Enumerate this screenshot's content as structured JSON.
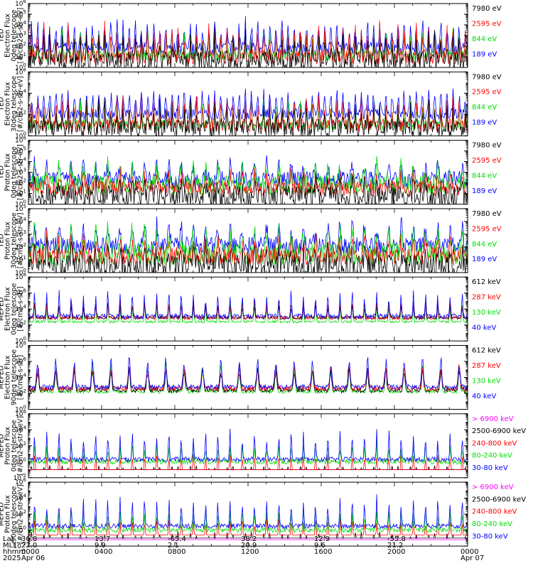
{
  "colors": {
    "black": "#000000",
    "red": "#ff0000",
    "green": "#00e000",
    "blue": "#0000ff",
    "magenta": "#ff00ff"
  },
  "chart_data": [
    {
      "type": "line",
      "ylabel": [
        "TED",
        "Electron Flux",
        "0deg telescope",
        "[#/cm2-s-str-eV]"
      ],
      "yscale": "log",
      "ylim_exp": [
        0,
        6
      ],
      "ytick_exp": [
        0,
        1,
        2,
        3,
        4,
        5,
        6
      ],
      "legend": [
        {
          "label": "7980 eV",
          "color": "black"
        },
        {
          "label": "2595 eV",
          "color": "red"
        },
        {
          "label": "844 eV",
          "color": "green"
        },
        {
          "label": "189 eV",
          "color": "blue"
        }
      ],
      "series": [
        {
          "color": "blue",
          "base": 1.8,
          "peak": 4.3,
          "noise": 0.6,
          "period": 6,
          "width": 8
        },
        {
          "color": "green",
          "base": 1.1,
          "peak": 3.5,
          "noise": 0.5,
          "period": 6,
          "width": 6
        },
        {
          "color": "red",
          "base": 1.0,
          "peak": 4.0,
          "noise": 0.7,
          "period": 6,
          "width": 5
        },
        {
          "color": "black",
          "base": 0.6,
          "peak": 3.4,
          "noise": 0.9,
          "period": 6,
          "width": 4
        }
      ]
    },
    {
      "type": "line",
      "ylabel": [
        "TED",
        "Electron Flux",
        "30deg telescope",
        "[#/cm2-s-str-eV]"
      ],
      "yscale": "log",
      "ylim_exp": [
        0,
        6
      ],
      "ytick_exp": [
        0,
        2,
        4,
        6
      ],
      "legend": [
        {
          "label": "7980 eV",
          "color": "black"
        },
        {
          "label": "2595 eV",
          "color": "red"
        },
        {
          "label": "844 eV",
          "color": "green"
        },
        {
          "label": "189 eV",
          "color": "blue"
        }
      ],
      "series": [
        {
          "color": "blue",
          "base": 2.0,
          "peak": 4.2,
          "noise": 0.5,
          "period": 6,
          "width": 9
        },
        {
          "color": "green",
          "base": 1.0,
          "peak": 3.3,
          "noise": 0.5,
          "period": 6,
          "width": 6
        },
        {
          "color": "red",
          "base": 1.0,
          "peak": 3.8,
          "noise": 0.6,
          "period": 6,
          "width": 5
        },
        {
          "color": "black",
          "base": 0.7,
          "peak": 3.2,
          "noise": 0.8,
          "period": 6,
          "width": 4
        }
      ]
    },
    {
      "type": "line",
      "ylabel": [
        "TED",
        "Proton Flux",
        "0deg telescope",
        "[#/cm2-s-str-eV]"
      ],
      "yscale": "log",
      "ylim_exp": [
        0,
        6
      ],
      "ytick_exp": [
        0,
        1,
        2,
        3,
        4,
        5,
        6
      ],
      "legend": [
        {
          "label": "7980 eV",
          "color": "black"
        },
        {
          "label": "2595 eV",
          "color": "red"
        },
        {
          "label": "844 eV",
          "color": "green"
        },
        {
          "label": "189 eV",
          "color": "blue"
        }
      ],
      "series": [
        {
          "color": "blue",
          "base": 2.3,
          "peak": 4.0,
          "noise": 0.8,
          "period": 3,
          "width": 6
        },
        {
          "color": "green",
          "base": 1.8,
          "peak": 3.8,
          "noise": 0.9,
          "period": 3,
          "width": 6
        },
        {
          "color": "red",
          "base": 1.5,
          "peak": 3.0,
          "noise": 0.7,
          "period": 3,
          "width": 5
        },
        {
          "color": "black",
          "base": 0.7,
          "peak": 2.2,
          "noise": 1.0,
          "period": 3,
          "width": 4
        }
      ]
    },
    {
      "type": "line",
      "ylabel": [
        "TED",
        "Proton Flux",
        "30deg telescope",
        "[#/cm2-s-str-eV]"
      ],
      "yscale": "log",
      "ylim_exp": [
        0,
        5
      ],
      "ytick_exp": [
        0,
        1,
        2,
        3,
        4,
        5
      ],
      "legend": [
        {
          "label": "7980 eV",
          "color": "black"
        },
        {
          "label": "2595 eV",
          "color": "red"
        },
        {
          "label": "844 eV",
          "color": "green"
        },
        {
          "label": "189 eV",
          "color": "blue"
        }
      ],
      "series": [
        {
          "color": "blue",
          "base": 2.1,
          "peak": 3.9,
          "noise": 0.7,
          "period": 3,
          "width": 6
        },
        {
          "color": "green",
          "base": 1.4,
          "peak": 3.6,
          "noise": 0.9,
          "period": 3,
          "width": 6
        },
        {
          "color": "red",
          "base": 1.3,
          "peak": 2.8,
          "noise": 0.7,
          "period": 3,
          "width": 5
        },
        {
          "color": "black",
          "base": 0.5,
          "peak": 2.0,
          "noise": 0.9,
          "period": 3,
          "width": 4
        }
      ]
    },
    {
      "type": "line",
      "ylabel": [
        "MEPED",
        "Electron Flux",
        "0deg telescope",
        "[#/cm2-s-str]"
      ],
      "yscale": "log",
      "ylim_exp": [
        0,
        8
      ],
      "ytick_exp": [
        0,
        2,
        4,
        6,
        8
      ],
      "legend": [
        {
          "label": "612 keV",
          "color": "black"
        },
        {
          "label": "287 keV",
          "color": "red"
        },
        {
          "label": "130 keV",
          "color": "green"
        },
        {
          "label": "40 keV",
          "color": "blue"
        }
      ],
      "series": [
        {
          "color": "green",
          "base": 2.4,
          "peak": 5.6,
          "noise": 0.15,
          "period": 3,
          "width": 3
        },
        {
          "color": "black",
          "base": 2.9,
          "peak": 5.0,
          "noise": 0.2,
          "period": 3,
          "width": 3
        },
        {
          "color": "red",
          "base": 2.9,
          "peak": 5.3,
          "noise": 0.2,
          "period": 3,
          "width": 4
        },
        {
          "color": "blue",
          "base": 3.1,
          "peak": 6.6,
          "noise": 0.3,
          "period": 3,
          "width": 3
        }
      ]
    },
    {
      "type": "line",
      "ylabel": [
        "MEPED",
        "Electron Flux",
        "90deg telescope",
        "[#/cm2-s-str]"
      ],
      "yscale": "log",
      "ylim_exp": [
        0,
        8
      ],
      "ytick_exp": [
        0,
        2,
        4,
        6,
        8
      ],
      "legend": [
        {
          "label": "612 keV",
          "color": "black"
        },
        {
          "label": "287 keV",
          "color": "red"
        },
        {
          "label": "130 keV",
          "color": "green"
        },
        {
          "label": "40 keV",
          "color": "blue"
        }
      ],
      "series": [
        {
          "color": "green",
          "base": 2.2,
          "peak": 6.0,
          "noise": 0.2,
          "period": 2,
          "width": 4
        },
        {
          "color": "black",
          "base": 2.4,
          "peak": 5.4,
          "noise": 0.3,
          "period": 2,
          "width": 4
        },
        {
          "color": "red",
          "base": 2.6,
          "peak": 5.7,
          "noise": 0.3,
          "period": 2,
          "width": 5
        },
        {
          "color": "blue",
          "base": 2.8,
          "peak": 6.8,
          "noise": 0.3,
          "period": 2,
          "width": 4
        }
      ]
    },
    {
      "type": "line",
      "ylabel": [
        "MEPED",
        "Proton Flux",
        "0deg telescope",
        "[#/cm2-s-str-keV]"
      ],
      "yscale": "log",
      "ylim_exp": [
        -2,
        6
      ],
      "ytick_exp": [
        -2,
        0,
        2,
        4,
        6
      ],
      "legend": [
        {
          "label": "> 6900 keV",
          "color": "magenta"
        },
        {
          "label": "2500-6900 keV",
          "color": "black"
        },
        {
          "label": "240-800 keV",
          "color": "red"
        },
        {
          "label": "80-240 keV",
          "color": "green"
        },
        {
          "label": "30-80 keV",
          "color": "blue"
        }
      ],
      "series": [
        {
          "color": "magenta",
          "base": -1.0,
          "peak": -0.9,
          "noise": 0.15,
          "period": 6,
          "width": 2,
          "dots": true
        },
        {
          "color": "black",
          "base": -1.0,
          "peak": -0.4,
          "noise": 0.2,
          "period": 6,
          "width": 2,
          "dots": true
        },
        {
          "color": "red",
          "base": -1.0,
          "peak": 1.2,
          "noise": 0.2,
          "period": 3,
          "width": 3,
          "dots": true
        },
        {
          "color": "green",
          "base": 0.0,
          "peak": 2.5,
          "noise": 0.3,
          "period": 3,
          "width": 3
        },
        {
          "color": "blue",
          "base": 0.3,
          "peak": 4.2,
          "noise": 0.3,
          "period": 3,
          "width": 3
        }
      ]
    },
    {
      "type": "line",
      "ylabel": [
        "MEPED",
        "Proton Flux",
        "90deg telescope",
        "[#/cm2-s-str-keV]"
      ],
      "yscale": "log",
      "ylim_exp": [
        -2,
        6
      ],
      "ytick_exp": [
        -2,
        0,
        2,
        4,
        6
      ],
      "legend": [
        {
          "label": "> 6900 keV",
          "color": "magenta"
        },
        {
          "label": "2500-6900 keV",
          "color": "black"
        },
        {
          "label": "240-800 keV",
          "color": "red"
        },
        {
          "label": "80-240 keV",
          "color": "green"
        },
        {
          "label": "30-80 keV",
          "color": "blue"
        }
      ],
      "series": [
        {
          "color": "magenta",
          "base": -1.2,
          "peak": -0.9,
          "noise": 0.15,
          "period": 6,
          "width": 2,
          "dots": true
        },
        {
          "color": "black",
          "base": -1.0,
          "peak": -0.2,
          "noise": 0.3,
          "period": 6,
          "width": 2,
          "dots": true
        },
        {
          "color": "red",
          "base": -0.6,
          "peak": 1.6,
          "noise": 0.3,
          "period": 3,
          "width": 3,
          "dots": true
        },
        {
          "color": "green",
          "base": 0.0,
          "peak": 2.7,
          "noise": 0.3,
          "period": 3,
          "width": 3
        },
        {
          "color": "blue",
          "base": 0.5,
          "peak": 4.3,
          "noise": 0.3,
          "period": 3,
          "width": 3
        }
      ]
    }
  ],
  "footer": {
    "row_labels": [
      "Lat",
      "MLT",
      "hhmm",
      "2025"
    ],
    "columns": [
      {
        "lat": "36.8",
        "mlt": "22.0",
        "hhmm": "0000",
        "date": "Apr 06"
      },
      {
        "lat": "13.7",
        "mlt": "9.9",
        "hhmm": "0400",
        "date": ""
      },
      {
        "lat": "-65.4",
        "mlt": "2.1",
        "hhmm": "0800",
        "date": ""
      },
      {
        "lat": "38.2",
        "mlt": "20.9",
        "hhmm": "1200",
        "date": ""
      },
      {
        "lat": "12.9",
        "mlt": "9.6",
        "hhmm": "1600",
        "date": ""
      },
      {
        "lat": "-55.8",
        "mlt": "21.2",
        "hhmm": "2000",
        "date": ""
      },
      {
        "lat": "",
        "mlt": "",
        "hhmm": "0000",
        "date": "Apr 07"
      }
    ]
  }
}
